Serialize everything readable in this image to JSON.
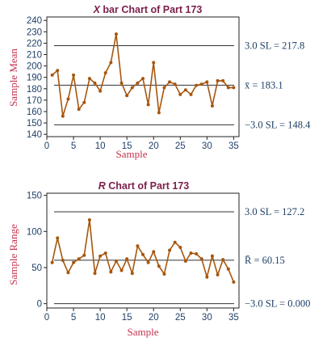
{
  "colors": {
    "series": "#a6560e",
    "axis": "#222222",
    "limit_line": "#333333",
    "title": "#7b1f4b",
    "axis_label": "#c4344f",
    "tick": "#1f3f66"
  },
  "chart_data": [
    {
      "type": "line",
      "title_italic": "X",
      "title_rest": " bar Chart of Part 173",
      "xlabel": "Sample",
      "ylabel": "Sample Mean",
      "xlim": [
        0,
        36
      ],
      "ylim": [
        138,
        243
      ],
      "xticks": [
        "0",
        "5",
        "10",
        "15",
        "20",
        "25",
        "30",
        "35"
      ],
      "yticks": [
        "140",
        "150",
        "160",
        "170",
        "180",
        "190",
        "200",
        "210",
        "220",
        "230",
        "240"
      ],
      "x": [
        1,
        2,
        3,
        4,
        5,
        6,
        7,
        8,
        9,
        10,
        11,
        12,
        13,
        14,
        15,
        16,
        17,
        18,
        19,
        20,
        21,
        22,
        23,
        24,
        25,
        26,
        27,
        28,
        29,
        30,
        31,
        32,
        33,
        34,
        35
      ],
      "values": [
        192,
        196,
        156,
        171,
        192,
        162,
        168,
        189,
        185,
        178,
        194,
        203,
        228,
        185,
        174,
        181,
        185,
        189,
        166,
        203,
        159,
        181,
        186,
        184,
        175,
        179,
        175,
        183,
        184,
        186,
        165,
        187,
        187,
        181,
        181
      ],
      "limits": [
        {
          "label": "3.0 SL = 217.8",
          "value": 217.8
        },
        {
          "label": "x̄ = 183.1",
          "value": 183.1
        },
        {
          "label": "−3.0 SL = 148.4",
          "value": 148.4
        }
      ]
    },
    {
      "type": "line",
      "title_italic": "R",
      "title_rest": " Chart of Part 173",
      "xlabel": "Sample",
      "ylabel": "Sample Range",
      "xlim": [
        0,
        36
      ],
      "ylim": [
        -6,
        153
      ],
      "xticks": [
        "0",
        "5",
        "10",
        "15",
        "20",
        "25",
        "30",
        "35"
      ],
      "yticks": [
        "0",
        "50",
        "100",
        "150"
      ],
      "x": [
        1,
        2,
        3,
        4,
        5,
        6,
        7,
        8,
        9,
        10,
        11,
        12,
        13,
        14,
        15,
        16,
        17,
        18,
        19,
        20,
        21,
        22,
        23,
        24,
        25,
        26,
        27,
        28,
        29,
        30,
        31,
        32,
        33,
        34,
        35
      ],
      "values": [
        57,
        91,
        60,
        43,
        57,
        62,
        67,
        116,
        42,
        66,
        70,
        44,
        59,
        46,
        62,
        42,
        80,
        68,
        57,
        72,
        52,
        41,
        74,
        85,
        78,
        59,
        70,
        69,
        62,
        37,
        66,
        40,
        61,
        48,
        30
      ],
      "limits": [
        {
          "label": "3.0 SL = 127.2",
          "value": 127.2
        },
        {
          "label": "R̄ = 60.15",
          "value": 60.15
        },
        {
          "label": "−3.0 SL = 0.000",
          "value": 0.0
        }
      ]
    }
  ]
}
